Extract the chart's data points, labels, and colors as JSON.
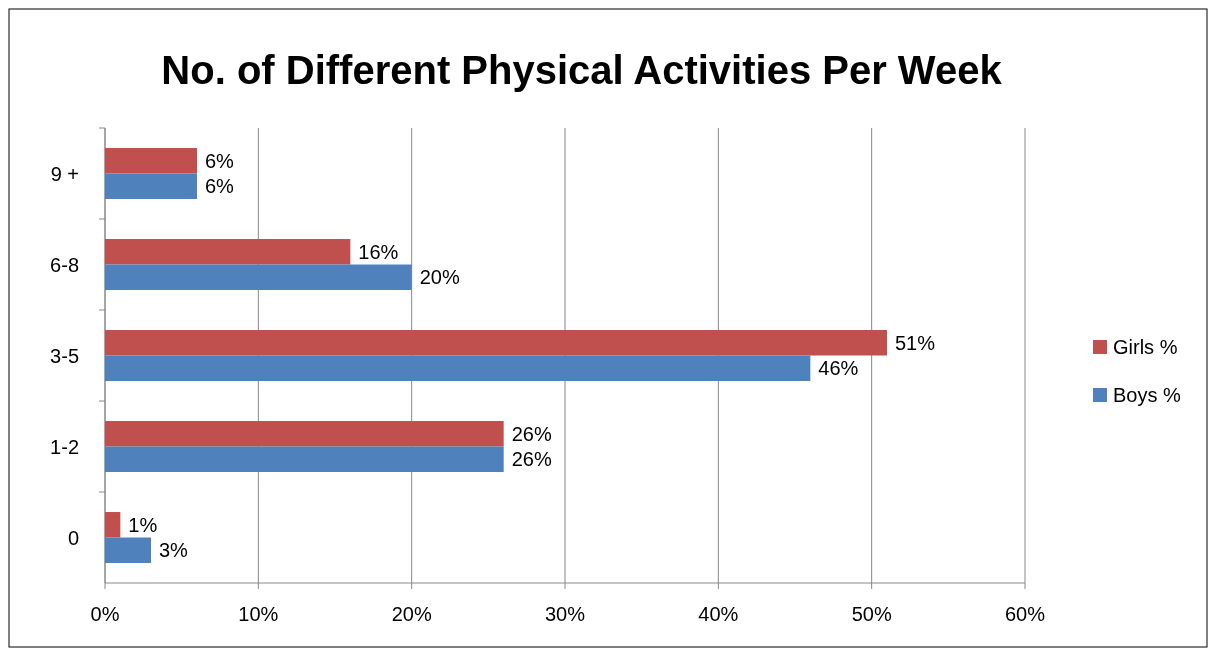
{
  "chart_data": {
    "type": "bar",
    "orientation": "horizontal",
    "title": "No. of Different Physical Activities Per Week",
    "categories": [
      "9 +",
      "6-8",
      "3-5",
      "1-2",
      "0"
    ],
    "series": [
      {
        "name": "Girls %",
        "color": "#c0504d",
        "values": [
          6,
          16,
          51,
          26,
          1
        ],
        "value_labels": [
          "6%",
          "16%",
          "51%",
          "26%",
          "1%"
        ]
      },
      {
        "name": "Boys %",
        "color": "#4f81bd",
        "values": [
          6,
          20,
          46,
          26,
          3
        ],
        "value_labels": [
          "6%",
          "20%",
          "46%",
          "26%",
          "3%"
        ]
      }
    ],
    "xlim": [
      0,
      60
    ],
    "xticks": [
      {
        "value": 0,
        "label": "0%"
      },
      {
        "value": 10,
        "label": "10%"
      },
      {
        "value": 20,
        "label": "20%"
      },
      {
        "value": 30,
        "label": "30%"
      },
      {
        "value": 40,
        "label": "40%"
      },
      {
        "value": 50,
        "label": "50%"
      },
      {
        "value": 60,
        "label": "60%"
      }
    ],
    "grid": "x",
    "legend": "right"
  }
}
